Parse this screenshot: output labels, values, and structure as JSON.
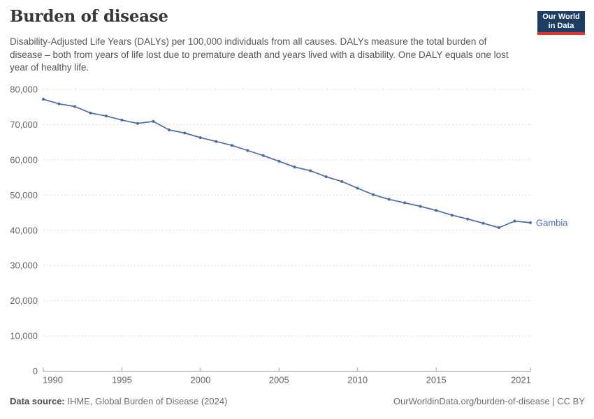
{
  "header": {
    "title": "Burden of disease",
    "subtitle": "Disability-Adjusted Life Years (DALYs) per 100,000 individuals from all causes. DALYs measure the total burden of disease – both from years of life lost due to premature death and years lived with a disability. One DALY equals one lost year of healthy life.",
    "logo": {
      "line1": "Our World",
      "line2": "in Data",
      "bg_color": "#1d3d63",
      "accent_color": "#e0342c"
    }
  },
  "chart_data": {
    "type": "line",
    "title": "Burden of disease",
    "ylabel": "DALYs per 100,000 individuals",
    "xlabel": "",
    "xlim": [
      1990,
      2021
    ],
    "ylim": [
      0,
      80000
    ],
    "grid": "dashed-horizontal",
    "legend_position": "end-of-line-label",
    "x_ticks": [
      "1990",
      "1995",
      "2000",
      "2005",
      "2010",
      "2015",
      "2021"
    ],
    "y_ticks": [
      "0",
      "10,000",
      "20,000",
      "30,000",
      "40,000",
      "50,000",
      "60,000",
      "70,000",
      "80,000"
    ],
    "x": [
      1990,
      1991,
      1992,
      1993,
      1994,
      1995,
      1996,
      1997,
      1998,
      1999,
      2000,
      2001,
      2002,
      2003,
      2004,
      2005,
      2006,
      2007,
      2008,
      2009,
      2010,
      2011,
      2012,
      2013,
      2014,
      2015,
      2016,
      2017,
      2018,
      2019,
      2020,
      2021
    ],
    "series": [
      {
        "name": "Gambia",
        "color": "#4b6ba5",
        "values": [
          77200,
          75900,
          75150,
          73300,
          72450,
          71300,
          70350,
          70900,
          68500,
          67600,
          66300,
          65200,
          64100,
          62650,
          61200,
          59600,
          57950,
          56900,
          55200,
          53850,
          51950,
          50100,
          48800,
          47800,
          46800,
          45650,
          44300,
          43200,
          42000,
          40750,
          42600,
          42150
        ]
      }
    ]
  },
  "footer": {
    "source_label": "Data source:",
    "source_value": " IHME, Global Burden of Disease (2024)",
    "note": "OurWorldinData.org/burden-of-disease | CC BY"
  },
  "colors": {
    "gridline": "#dcdcdc",
    "axis": "#999999",
    "tick_label": "#666666",
    "line": "#4b6ba5"
  }
}
